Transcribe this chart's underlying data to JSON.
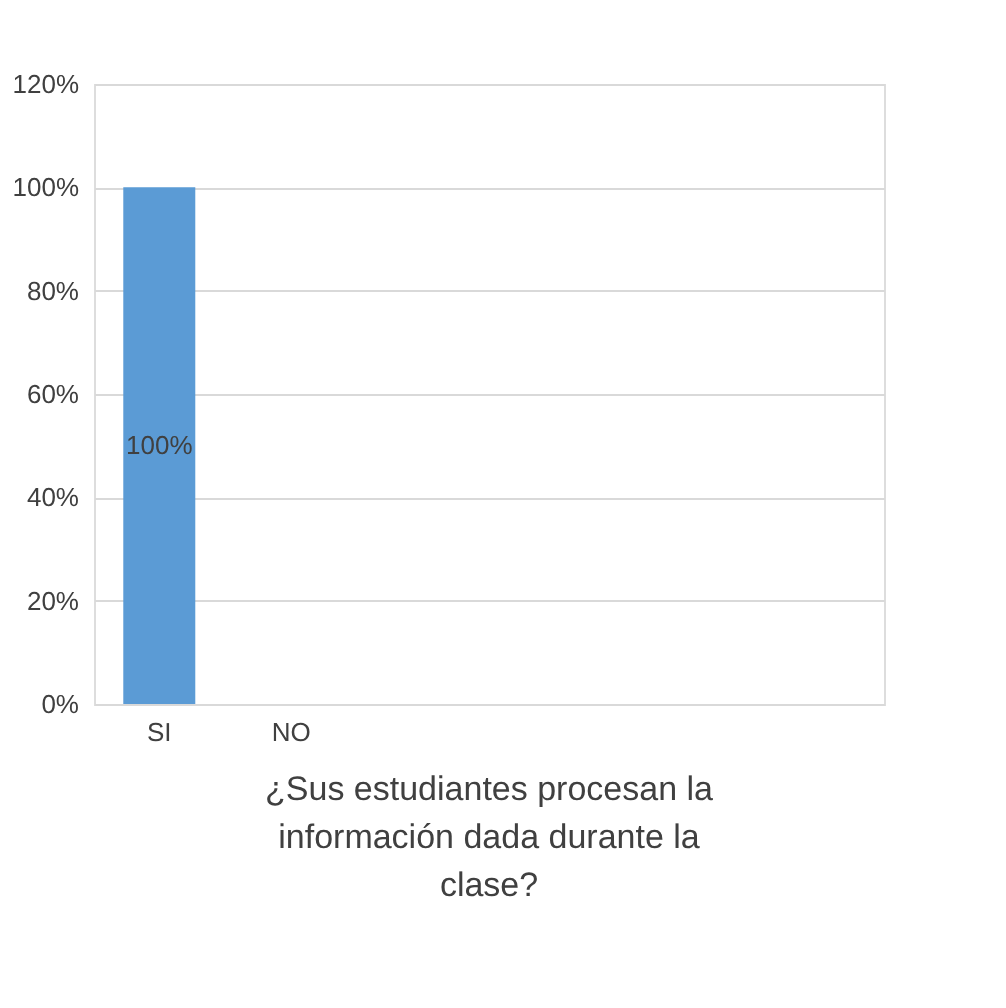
{
  "chart_data": {
    "type": "bar",
    "title": "¿Sus estudiantes procesan la información dada durante la clase?",
    "categories": [
      "SI",
      "NO",
      null,
      null,
      null,
      null
    ],
    "values": [
      100,
      null,
      null,
      null,
      null,
      null
    ],
    "color": "#5b9bd5",
    "value_labels": [
      "100%",
      null,
      null,
      null,
      null,
      null
    ],
    "ylim": [
      0,
      120
    ],
    "yticks": [
      {
        "value": 0,
        "label": "0%"
      },
      {
        "value": 20,
        "label": "20%"
      },
      {
        "value": 40,
        "label": "40%"
      },
      {
        "value": 60,
        "label": "60%"
      },
      {
        "value": 80,
        "label": "80%"
      },
      {
        "value": 100,
        "label": "100%"
      },
      {
        "value": 120,
        "label": "120%"
      }
    ],
    "grid": "y"
  }
}
